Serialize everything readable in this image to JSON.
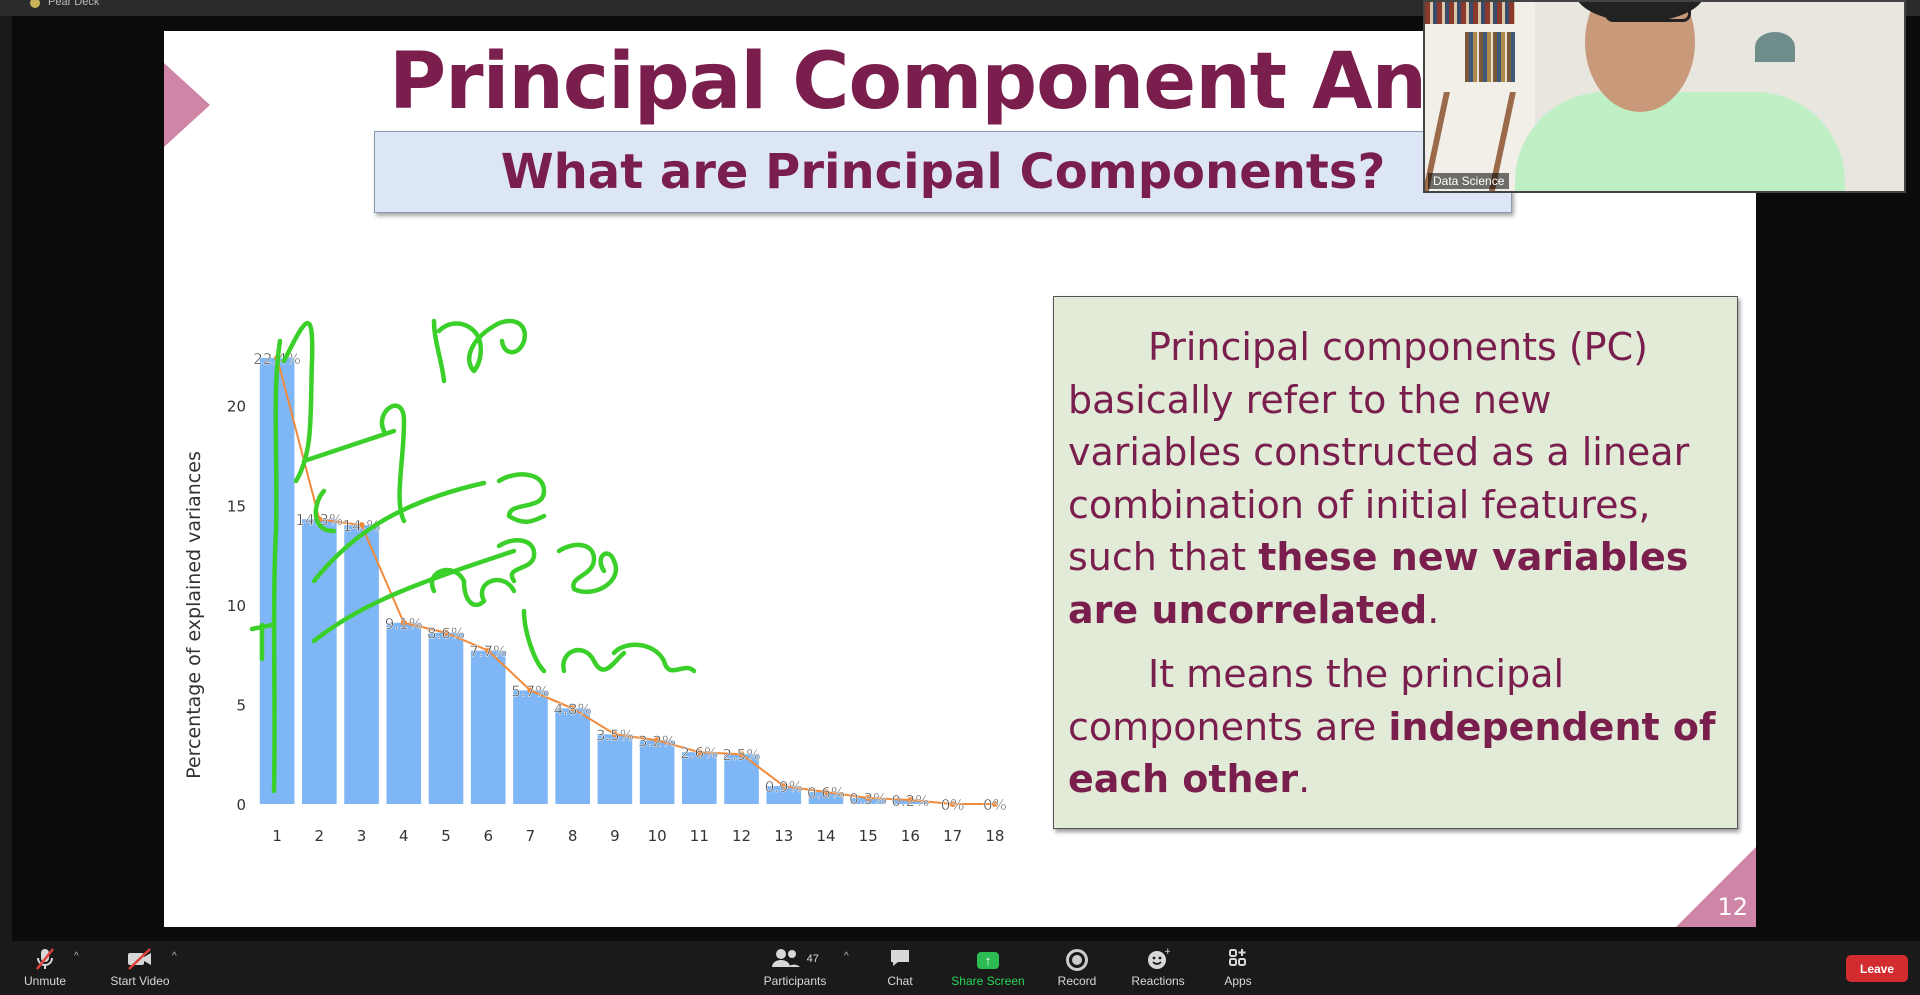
{
  "window": {
    "title": "Pear Deck"
  },
  "slide": {
    "title": "Principal Component Analysis",
    "subtitle": "What are Principal Components?",
    "number": "12",
    "paragraph1": {
      "normal1": "Principal components (PC) basically refer to the new variables constructed as a linear combination of initial features, such that ",
      "bold": "these new variables are uncorrelated",
      "normal2": "."
    },
    "paragraph2": {
      "normal1": "It means the principal components are ",
      "bold": "independent of each other",
      "normal2": "."
    }
  },
  "chart_data": {
    "type": "bar",
    "ylabel": "Percentage of explained variances",
    "xlabel": "",
    "categories": [
      "1",
      "2",
      "3",
      "4",
      "5",
      "6",
      "7",
      "8",
      "9",
      "10",
      "11",
      "12",
      "13",
      "14",
      "15",
      "16",
      "17",
      "18"
    ],
    "values": [
      22.4,
      14.3,
      14.0,
      9.1,
      8.6,
      7.7,
      5.7,
      4.8,
      3.5,
      3.2,
      2.6,
      2.5,
      0.9,
      0.6,
      0.3,
      0.2,
      0,
      0
    ],
    "data_labels": [
      "22.4%",
      "14.3%",
      "14.%",
      "9.1%",
      "8.6%",
      "7.7%",
      "5.7%",
      "4.8%",
      "3.5%",
      "3.2%",
      "2.6%",
      "2.5%",
      "0.9%",
      "0.6%",
      "0.3%",
      "0.2%",
      "0%",
      "0%"
    ],
    "yticks": [
      0,
      5,
      10,
      15,
      20
    ],
    "ylim": [
      0,
      24
    ],
    "bar_color": "#7fb6f5",
    "line_color": "#f08a3c",
    "annotation_color": "#3bcf2a",
    "grid": false
  },
  "webcam": {
    "label": "Data Science"
  },
  "toolbar": {
    "unmute": "Unmute",
    "start_video": "Start Video",
    "participants": "Participants",
    "participants_count": "47",
    "chat": "Chat",
    "share_screen": "Share Screen",
    "record": "Record",
    "reactions": "Reactions",
    "apps": "Apps",
    "leave": "Leave"
  }
}
